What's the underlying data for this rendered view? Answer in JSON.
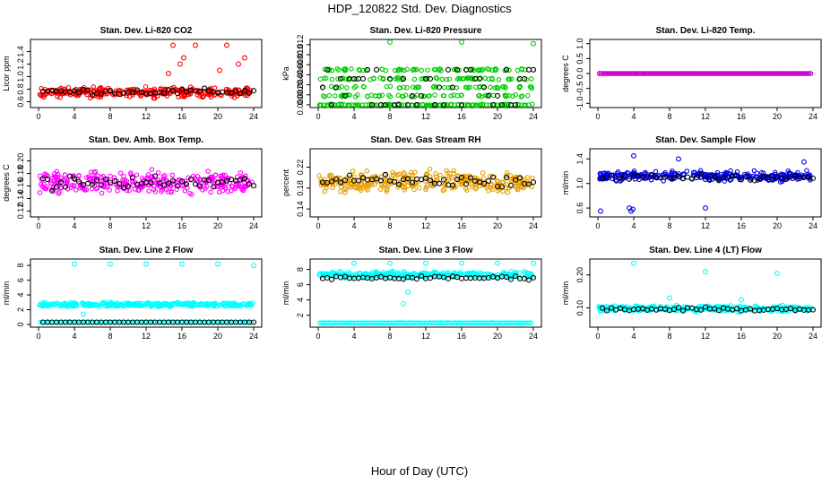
{
  "title": "HDP_120822  Std. Dev. Diagnostics",
  "xlabel": "Hour of Day (UTC)",
  "chart_data": [
    {
      "type": "scatter",
      "title": "Stan. Dev. Li-820 CO2",
      "ylabel": "Licor ppm",
      "color": "#ff0000",
      "xlim": [
        0,
        24
      ],
      "ylim": [
        0.55,
        1.55
      ],
      "xticks": [
        0,
        4,
        8,
        12,
        16,
        20,
        24
      ],
      "yticks": [
        0.6,
        0.8,
        1.0,
        1.2,
        1.4
      ],
      "ytick_labels": [
        "0.6",
        "0.8",
        "1.0",
        "1.2",
        "1.4"
      ],
      "bands": [
        {
          "mean": 0.75,
          "spread": 0.07
        }
      ],
      "means": [
        0.76
      ],
      "outliers": [
        [
          14.5,
          1.05
        ],
        [
          15.0,
          1.5
        ],
        [
          15.8,
          1.2
        ],
        [
          16.2,
          1.3
        ],
        [
          17.5,
          1.5
        ],
        [
          20.2,
          1.1
        ],
        [
          21.0,
          1.5
        ],
        [
          22.3,
          1.2
        ],
        [
          23.0,
          1.3
        ]
      ]
    },
    {
      "type": "scatter",
      "title": "Stan. Dev. Li-820 Pressure",
      "ylabel": "kPa",
      "color": "#00cc00",
      "xlim": [
        0,
        24
      ],
      "ylim": [
        0,
        0.0125
      ],
      "xticks": [
        0,
        4,
        8,
        12,
        16,
        20,
        24
      ],
      "yticks": [
        0,
        0.002,
        0.004,
        0.006,
        0.008,
        0.01,
        0.012
      ],
      "ytick_labels": [
        "0.000",
        "0.002",
        "0.004",
        "0.006",
        "0.008",
        "0.010",
        "0.012"
      ],
      "levels": [
        0,
        0.0018,
        0.0035,
        0.0052,
        0.007
      ],
      "means": [
        0.0045
      ],
      "outliers": [
        [
          8.0,
          0.0125
        ],
        [
          16.0,
          0.0125
        ],
        [
          24.0,
          0.0122
        ]
      ]
    },
    {
      "type": "scatter",
      "title": "Stan. Dev. Li-820 Temp.",
      "ylabel": "degrees C",
      "color": "#cc00cc",
      "xlim": [
        0,
        24
      ],
      "ylim": [
        -1.05,
        1.05
      ],
      "xticks": [
        0,
        4,
        8,
        12,
        16,
        20,
        24
      ],
      "yticks": [
        -1,
        -0.5,
        0,
        0.5,
        1
      ],
      "ytick_labels": [
        "-1.0",
        "-0.5",
        "0.0",
        "0.5",
        "1.0"
      ],
      "constant": 0
    },
    {
      "type": "scatter",
      "title": "Stan. Dev. Amb. Box Temp.",
      "ylabel": "degrees C",
      "color": "#ff00ff",
      "xlim": [
        0,
        24
      ],
      "ylim": [
        0.115,
        0.215
      ],
      "xticks": [
        0,
        4,
        8,
        12,
        16,
        20,
        24
      ],
      "yticks": [
        0.12,
        0.14,
        0.16,
        0.18,
        0.2
      ],
      "ytick_labels": [
        "0.12",
        "0.14",
        "0.16",
        "0.18",
        "0.20"
      ],
      "bands": [
        {
          "mean": 0.164,
          "spread": 0.016
        }
      ],
      "means": [
        0.165
      ]
    },
    {
      "type": "scatter",
      "title": "Stan. Dev. Gas Stream RH",
      "ylabel": "percent",
      "color": "#e8a000",
      "xlim": [
        0,
        24
      ],
      "ylim": [
        0.13,
        0.25
      ],
      "xticks": [
        0,
        4,
        8,
        12,
        16,
        20,
        24
      ],
      "yticks": [
        0.14,
        0.18,
        0.22
      ],
      "ytick_labels": [
        "0.14",
        "0.18",
        "0.22"
      ],
      "bands": [
        {
          "mean": 0.192,
          "spread": 0.018
        }
      ],
      "means": [
        0.193
      ]
    },
    {
      "type": "scatter",
      "title": "Stan. Dev. Sample Flow",
      "ylabel": "ml/min",
      "color": "#0000ee",
      "xlim": [
        0,
        24
      ],
      "ylim": [
        0.5,
        1.52
      ],
      "xticks": [
        0,
        4,
        8,
        12,
        16,
        20,
        24
      ],
      "yticks": [
        0.6,
        1.0,
        1.4
      ],
      "ytick_labels": [
        "0.6",
        "1.0",
        "1.4"
      ],
      "bands": [
        {
          "mean": 1.12,
          "spread": 0.07
        }
      ],
      "means": [
        1.1
      ],
      "outliers": [
        [
          0.3,
          0.55
        ],
        [
          3.5,
          0.6
        ],
        [
          3.7,
          0.55
        ],
        [
          3.9,
          0.58
        ],
        [
          12.0,
          0.6
        ],
        [
          4.0,
          1.45
        ],
        [
          9.0,
          1.4
        ],
        [
          23.0,
          1.35
        ]
      ]
    },
    {
      "type": "scatter",
      "title": "Stan. Dev. Line 2 Flow",
      "ylabel": "ml/min",
      "color": "#00ffff",
      "xlim": [
        0,
        24
      ],
      "ylim": [
        0,
        8.5
      ],
      "xticks": [
        0,
        4,
        8,
        12,
        16,
        20,
        24
      ],
      "yticks": [
        0,
        2,
        4,
        6,
        8
      ],
      "ytick_labels": [
        "0",
        "2",
        "4",
        "6",
        "8"
      ],
      "bands": [
        {
          "mean": 2.7,
          "spread": 0.25
        }
      ],
      "means": [
        0.3
      ],
      "lower_level": 0.3,
      "outliers": [
        [
          4.0,
          8.2
        ],
        [
          8.0,
          8.2
        ],
        [
          12.0,
          8.2
        ],
        [
          16.0,
          8.2
        ],
        [
          20.0,
          8.2
        ],
        [
          24.0,
          8.0
        ],
        [
          5.0,
          1.4
        ]
      ]
    },
    {
      "type": "scatter",
      "title": "Stan. Dev. Line 3 Flow",
      "ylabel": "ml/min",
      "color": "#00ffff",
      "xlim": [
        0,
        24
      ],
      "ylim": [
        0.8,
        9.0
      ],
      "xticks": [
        0,
        4,
        8,
        12,
        16,
        20,
        24
      ],
      "yticks": [
        2,
        4,
        6,
        8
      ],
      "ytick_labels": [
        "2",
        "4",
        "6",
        "8"
      ],
      "bands": [
        {
          "mean": 7.3,
          "spread": 0.35
        }
      ],
      "means": [
        6.9
      ],
      "lower_level": 1.0,
      "outliers": [
        [
          4.0,
          8.8
        ],
        [
          8.0,
          8.8
        ],
        [
          12.0,
          8.8
        ],
        [
          16.0,
          8.8
        ],
        [
          20.0,
          8.8
        ],
        [
          24.0,
          8.8
        ],
        [
          9.5,
          3.5
        ],
        [
          10.0,
          5.0
        ]
      ]
    },
    {
      "type": "scatter",
      "title": "Stan. Dev. Line 4 (LT) Flow",
      "ylabel": "ml/min",
      "color": "#00ffff",
      "xlim": [
        0,
        24
      ],
      "ylim": [
        0.05,
        0.24
      ],
      "xticks": [
        0,
        4,
        8,
        12,
        16,
        20,
        24
      ],
      "yticks": [
        0.1,
        0.2
      ],
      "ytick_labels": [
        "0.10",
        "0.20"
      ],
      "bands": [
        {
          "mean": 0.098,
          "spread": 0.008
        }
      ],
      "means": [
        0.096
      ],
      "outliers": [
        [
          4.0,
          0.235
        ],
        [
          12.0,
          0.21
        ],
        [
          20.0,
          0.205
        ],
        [
          8.0,
          0.13
        ],
        [
          16.0,
          0.125
        ]
      ]
    }
  ]
}
